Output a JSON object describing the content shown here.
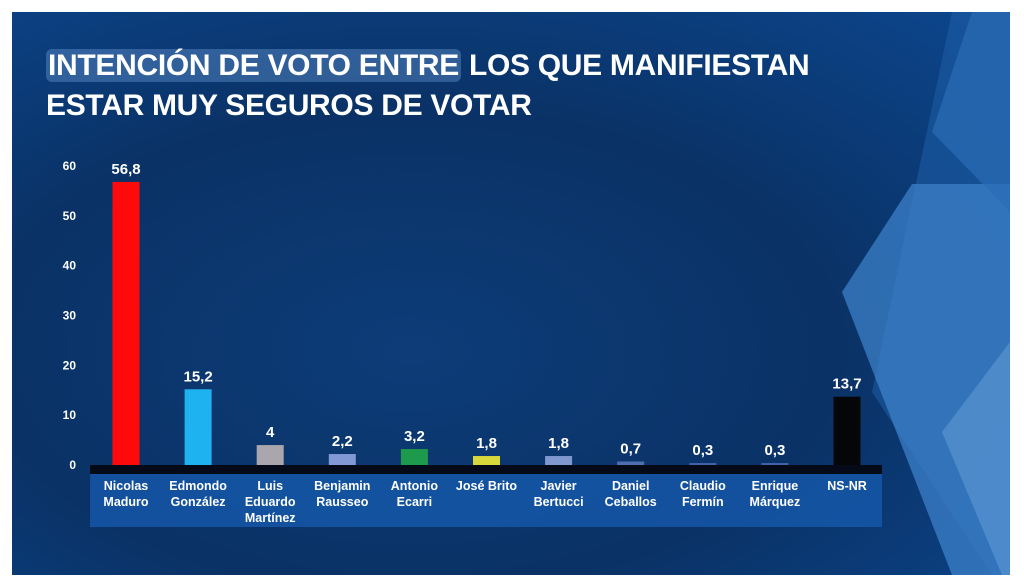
{
  "title_part1": "INTENCIÓN DE VOTO ENTRE",
  "title_part2": " LOS QUE MANIFIESTAN",
  "title_line2": "ESTAR MUY SEGUROS DE VOTAR",
  "chart_data": {
    "type": "bar",
    "title": "INTENCIÓN DE VOTO ENTRE LOS QUE MANIFIESTAN ESTAR MUY SEGUROS DE VOTAR",
    "categories": [
      [
        "Nicolas",
        "Maduro"
      ],
      [
        "Edmondo",
        "González"
      ],
      [
        "Luis",
        "Eduardo",
        "Martínez"
      ],
      [
        "Benjamin",
        "Rausseo"
      ],
      [
        "Antonio",
        "Ecarri"
      ],
      [
        "José Brito"
      ],
      [
        "Javier",
        "Bertucci"
      ],
      [
        "Daniel",
        "Ceballos"
      ],
      [
        "Claudio",
        "Fermín"
      ],
      [
        "Enrique",
        "Márquez"
      ],
      [
        "NS-NR"
      ]
    ],
    "values": [
      56.8,
      15.2,
      4,
      2.2,
      3.2,
      1.8,
      1.8,
      0.7,
      0.3,
      0.3,
      13.7
    ],
    "value_labels": [
      "56,8",
      "15,2",
      "4",
      "2,2",
      "3,2",
      "1,8",
      "1,8",
      "0,7",
      "0,3",
      "0,3",
      "13,7"
    ],
    "colors": [
      "#ff0a0a",
      "#1fb2f0",
      "#a9a6ad",
      "#8199d4",
      "#1e9a4c",
      "#d8d83c",
      "#7f98d0",
      "#4f6fb0",
      "#3f62a8",
      "#3f62a8",
      "#050608"
    ],
    "yticks": [
      0,
      10,
      20,
      30,
      40,
      50,
      60
    ],
    "ylim": [
      0,
      60
    ],
    "xlabel": "",
    "ylabel": "",
    "grid": false,
    "legend": "none"
  }
}
